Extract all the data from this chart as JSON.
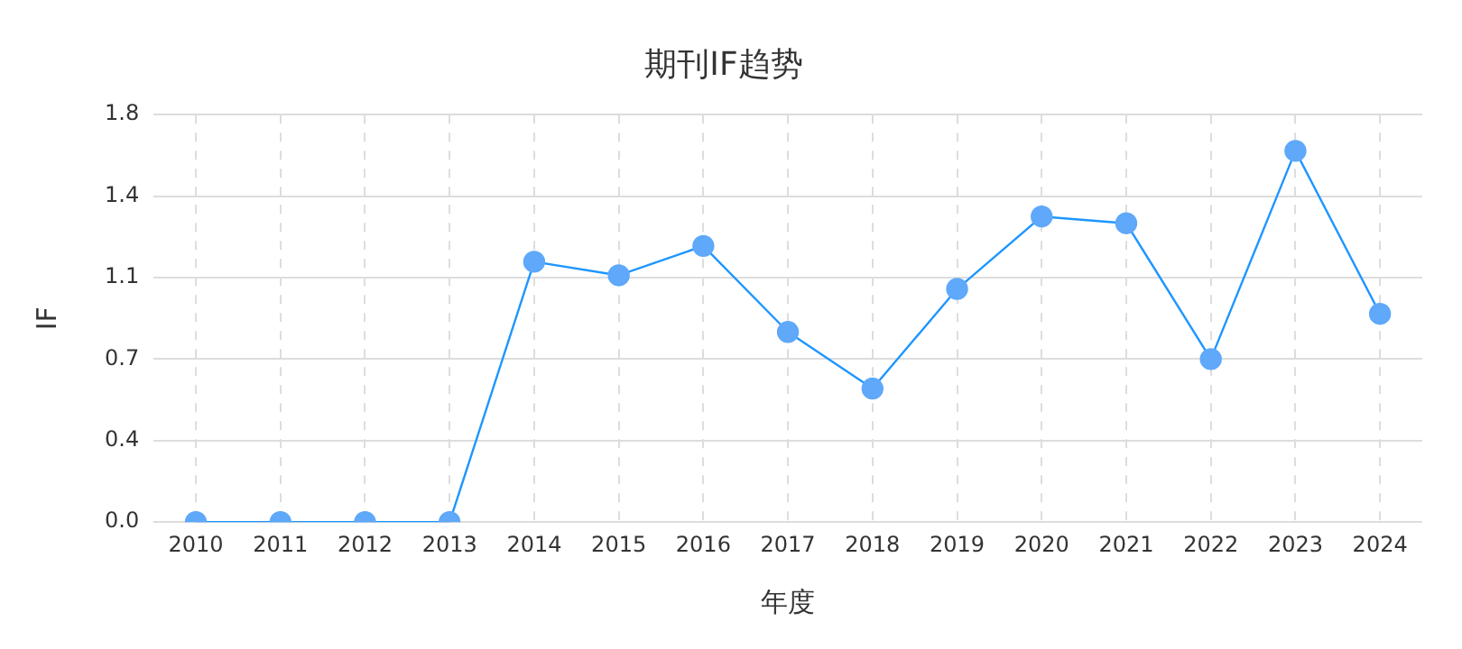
{
  "chart_data": {
    "type": "line",
    "title": "期刊IF趋势",
    "xlabel": "年度",
    "ylabel": "IF",
    "categories": [
      "2010",
      "2011",
      "2012",
      "2013",
      "2014",
      "2015",
      "2016",
      "2017",
      "2018",
      "2019",
      "2020",
      "2021",
      "2022",
      "2023",
      "2024"
    ],
    "series": [
      {
        "color": "#1e96ff",
        "values": [
          0,
          0,
          0,
          0,
          1.15,
          1.09,
          1.22,
          0.84,
          0.59,
          1.03,
          1.35,
          1.32,
          0.72,
          1.64,
          0.92
        ]
      }
    ],
    "ylim": [
      0,
      1.8
    ],
    "yticks": [
      {
        "value": 0,
        "label": "0.0"
      },
      {
        "value": 0.36,
        "label": "0.4"
      },
      {
        "value": 0.72,
        "label": "0.7"
      },
      {
        "value": 1.08,
        "label": "1.1"
      },
      {
        "value": 1.44,
        "label": "1.4"
      },
      1.8
    ],
    "grid": true,
    "marker": "circle",
    "line_style": "solid",
    "legend": false
  }
}
